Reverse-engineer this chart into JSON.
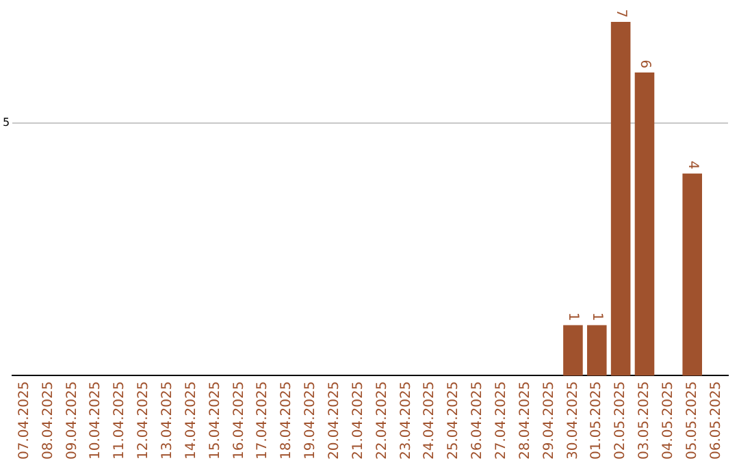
{
  "chart_data": {
    "type": "bar",
    "categories": [
      "07.04.2025",
      "08.04.2025",
      "09.04.2025",
      "10.04.2025",
      "11.04.2025",
      "12.04.2025",
      "13.04.2025",
      "14.04.2025",
      "15.04.2025",
      "16.04.2025",
      "17.04.2025",
      "18.04.2025",
      "19.04.2025",
      "20.04.2025",
      "21.04.2025",
      "22.04.2025",
      "23.04.2025",
      "24.04.2025",
      "25.04.2025",
      "26.04.2025",
      "27.04.2025",
      "28.04.2025",
      "29.04.2025",
      "30.04.2025",
      "01.05.2025",
      "02.05.2025",
      "03.05.2025",
      "04.05.2025",
      "05.05.2025",
      "06.05.2025"
    ],
    "values": [
      null,
      null,
      null,
      null,
      null,
      null,
      null,
      null,
      null,
      null,
      null,
      null,
      null,
      null,
      null,
      null,
      null,
      null,
      null,
      null,
      null,
      null,
      null,
      1,
      1,
      7,
      6,
      null,
      4,
      null
    ],
    "value_labels": [
      null,
      null,
      null,
      null,
      null,
      null,
      null,
      null,
      null,
      null,
      null,
      null,
      null,
      null,
      null,
      null,
      null,
      null,
      null,
      null,
      null,
      null,
      null,
      "1",
      "1",
      "7",
      "6",
      null,
      "4",
      null
    ],
    "color": "#a0522d",
    "ylim": [
      0,
      7
    ],
    "yticks": [
      5
    ],
    "grid": "y"
  }
}
